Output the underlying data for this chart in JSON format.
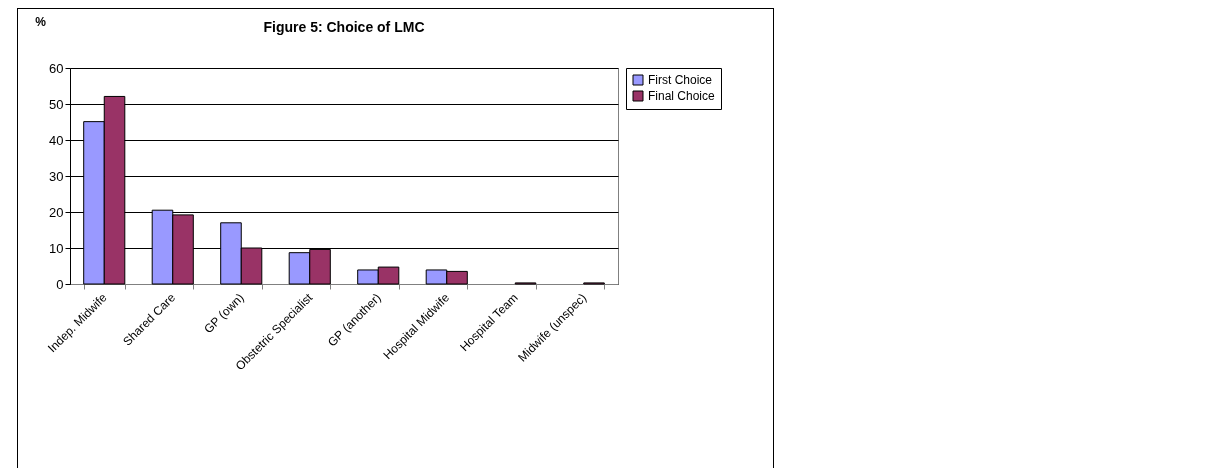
{
  "chart_data": {
    "type": "bar",
    "title": "Figure 5: Choice of LMC",
    "ylabel": "%",
    "categories": [
      "Indep. Midwife",
      "Shared Care",
      "GP (own)",
      "Obstetric Specialist",
      "GP (another)",
      "Hospital Midwife",
      "Hospital Team",
      "Midwife (unspec)"
    ],
    "series": [
      {
        "name": "First Choice",
        "color": "#9999ff",
        "values": [
          45.1,
          20.5,
          17.0,
          8.7,
          3.9,
          3.9,
          0,
          0
        ]
      },
      {
        "name": "Final Choice",
        "color": "#993366",
        "values": [
          52.1,
          19.2,
          10.0,
          9.6,
          4.7,
          3.5,
          0.3,
          0.3
        ]
      }
    ],
    "ylim": [
      0,
      60
    ],
    "yticks": [
      0,
      10,
      20,
      30,
      40,
      50,
      60
    ],
    "grid": "y",
    "legend": "right"
  }
}
